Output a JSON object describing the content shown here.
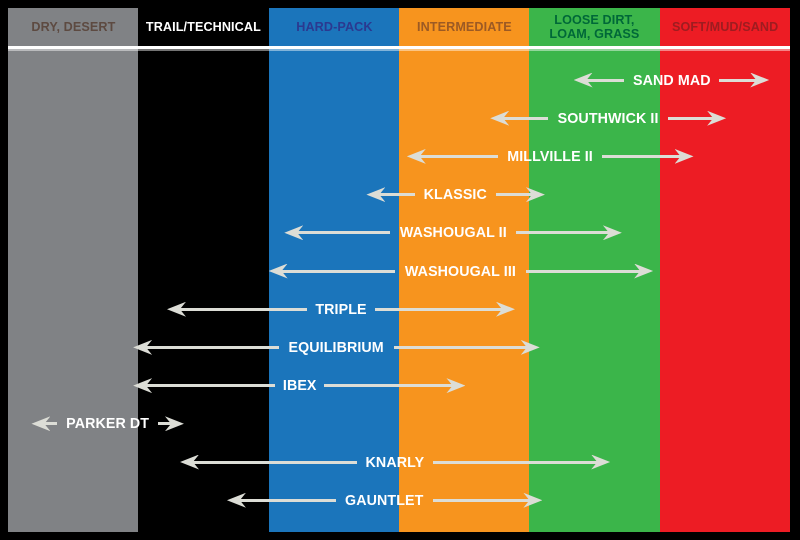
{
  "chart_data": {
    "type": "bar",
    "variant": "horizontal-range-arrows",
    "title": "",
    "axis_note": "x-axis = terrain type columns; each tire model shows a double-headed arrow spanning the terrain range it covers; units below are column indices (0 = left edge of DRY, DESERT; each column = 1 unit)",
    "legend_position": "none",
    "grid": false,
    "columns": [
      {
        "label": "DRY, DESERT",
        "color": "#808285",
        "label_color": "#5d4a41"
      },
      {
        "label": "TRAIL/TECHNICAL",
        "color": "#000000",
        "label_color": "#ffffff"
      },
      {
        "label": "HARD-PACK",
        "color": "#1b75bb",
        "label_color": "#2b3990"
      },
      {
        "label": "INTERMEDIATE",
        "color": "#f7941e",
        "label_color": "#9c5a24"
      },
      {
        "label": "LOOSE DIRT, LOAM, GRASS",
        "color": "#3bb54a",
        "label_color": "#006838"
      },
      {
        "label": "SOFT/MUD/SAND",
        "color": "#ed1c24",
        "label_color": "#9e1c20"
      }
    ],
    "tires": [
      {
        "name": "SAND MAD",
        "range": [
          4.34,
          5.84
        ]
      },
      {
        "name": "SOUTHWICK II",
        "range": [
          3.7,
          5.51
        ]
      },
      {
        "name": "MILLVILLE II",
        "range": [
          3.06,
          5.26
        ]
      },
      {
        "name": "KLASSIC",
        "range": [
          2.75,
          4.12
        ]
      },
      {
        "name": "WASHOUGAL II",
        "range": [
          2.12,
          4.71
        ]
      },
      {
        "name": "WASHOUGAL III",
        "range": [
          2.0,
          4.95
        ]
      },
      {
        "name": "TRIPLE",
        "range": [
          1.22,
          3.89
        ]
      },
      {
        "name": "EQUILIBRIUM",
        "range": [
          0.96,
          4.08
        ]
      },
      {
        "name": "IBEX",
        "range": [
          0.96,
          3.51
        ]
      },
      {
        "name": "PARKER DT",
        "range": [
          0.18,
          1.35
        ]
      },
      {
        "name": "KNARLY",
        "range": [
          1.32,
          4.62
        ]
      },
      {
        "name": "GAUNTLET",
        "range": [
          1.68,
          4.1
        ]
      }
    ],
    "styles": {
      "arrow_color": "#dcddd6",
      "tire_label_color": "#ffffff",
      "border_color": "#000000",
      "header_separator_color": "#ffffff"
    }
  }
}
